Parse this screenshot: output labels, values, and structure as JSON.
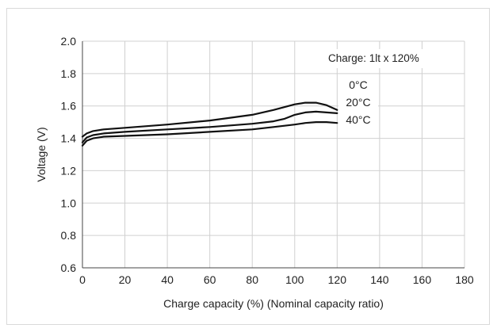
{
  "chart_data": {
    "type": "line",
    "title": "",
    "xlabel": "Charge capacity (%) (Nominal capacity ratio)",
    "ylabel": "Voltage (V)",
    "xlim": [
      0,
      180
    ],
    "ylim": [
      0.6,
      2.0
    ],
    "x_ticks": [
      "0",
      "20",
      "40",
      "60",
      "80",
      "100",
      "120",
      "140",
      "160",
      "180"
    ],
    "y_ticks": [
      "0.6",
      "0.8",
      "1.0",
      "1.2",
      "1.4",
      "1.6",
      "1.8",
      "2.0"
    ],
    "x_tick_values": [
      0,
      20,
      40,
      60,
      80,
      100,
      120,
      140,
      160,
      180
    ],
    "y_tick_values": [
      0.6,
      0.8,
      1.0,
      1.2,
      1.4,
      1.6,
      1.8,
      2.0
    ],
    "grid": true,
    "annotation": "Charge: 1lt x 120%",
    "series": [
      {
        "name": "0°C",
        "x": [
          0,
          2,
          5,
          10,
          20,
          40,
          60,
          80,
          90,
          100,
          105,
          110,
          115,
          120
        ],
        "y": [
          1.41,
          1.43,
          1.445,
          1.455,
          1.465,
          1.485,
          1.51,
          1.545,
          1.575,
          1.61,
          1.62,
          1.62,
          1.605,
          1.575
        ]
      },
      {
        "name": "20°C",
        "x": [
          0,
          2,
          5,
          10,
          20,
          40,
          60,
          80,
          90,
          95,
          100,
          105,
          110,
          115,
          120
        ],
        "y": [
          1.375,
          1.405,
          1.42,
          1.43,
          1.44,
          1.455,
          1.47,
          1.49,
          1.505,
          1.52,
          1.545,
          1.56,
          1.565,
          1.56,
          1.555
        ]
      },
      {
        "name": "40°C",
        "x": [
          0,
          2,
          5,
          10,
          20,
          40,
          60,
          80,
          90,
          100,
          105,
          110,
          115,
          120
        ],
        "y": [
          1.355,
          1.385,
          1.4,
          1.41,
          1.415,
          1.425,
          1.44,
          1.455,
          1.47,
          1.485,
          1.495,
          1.5,
          1.5,
          1.495
        ]
      }
    ],
    "line_color": "#111111",
    "grid_color": "#d0d0d0"
  }
}
